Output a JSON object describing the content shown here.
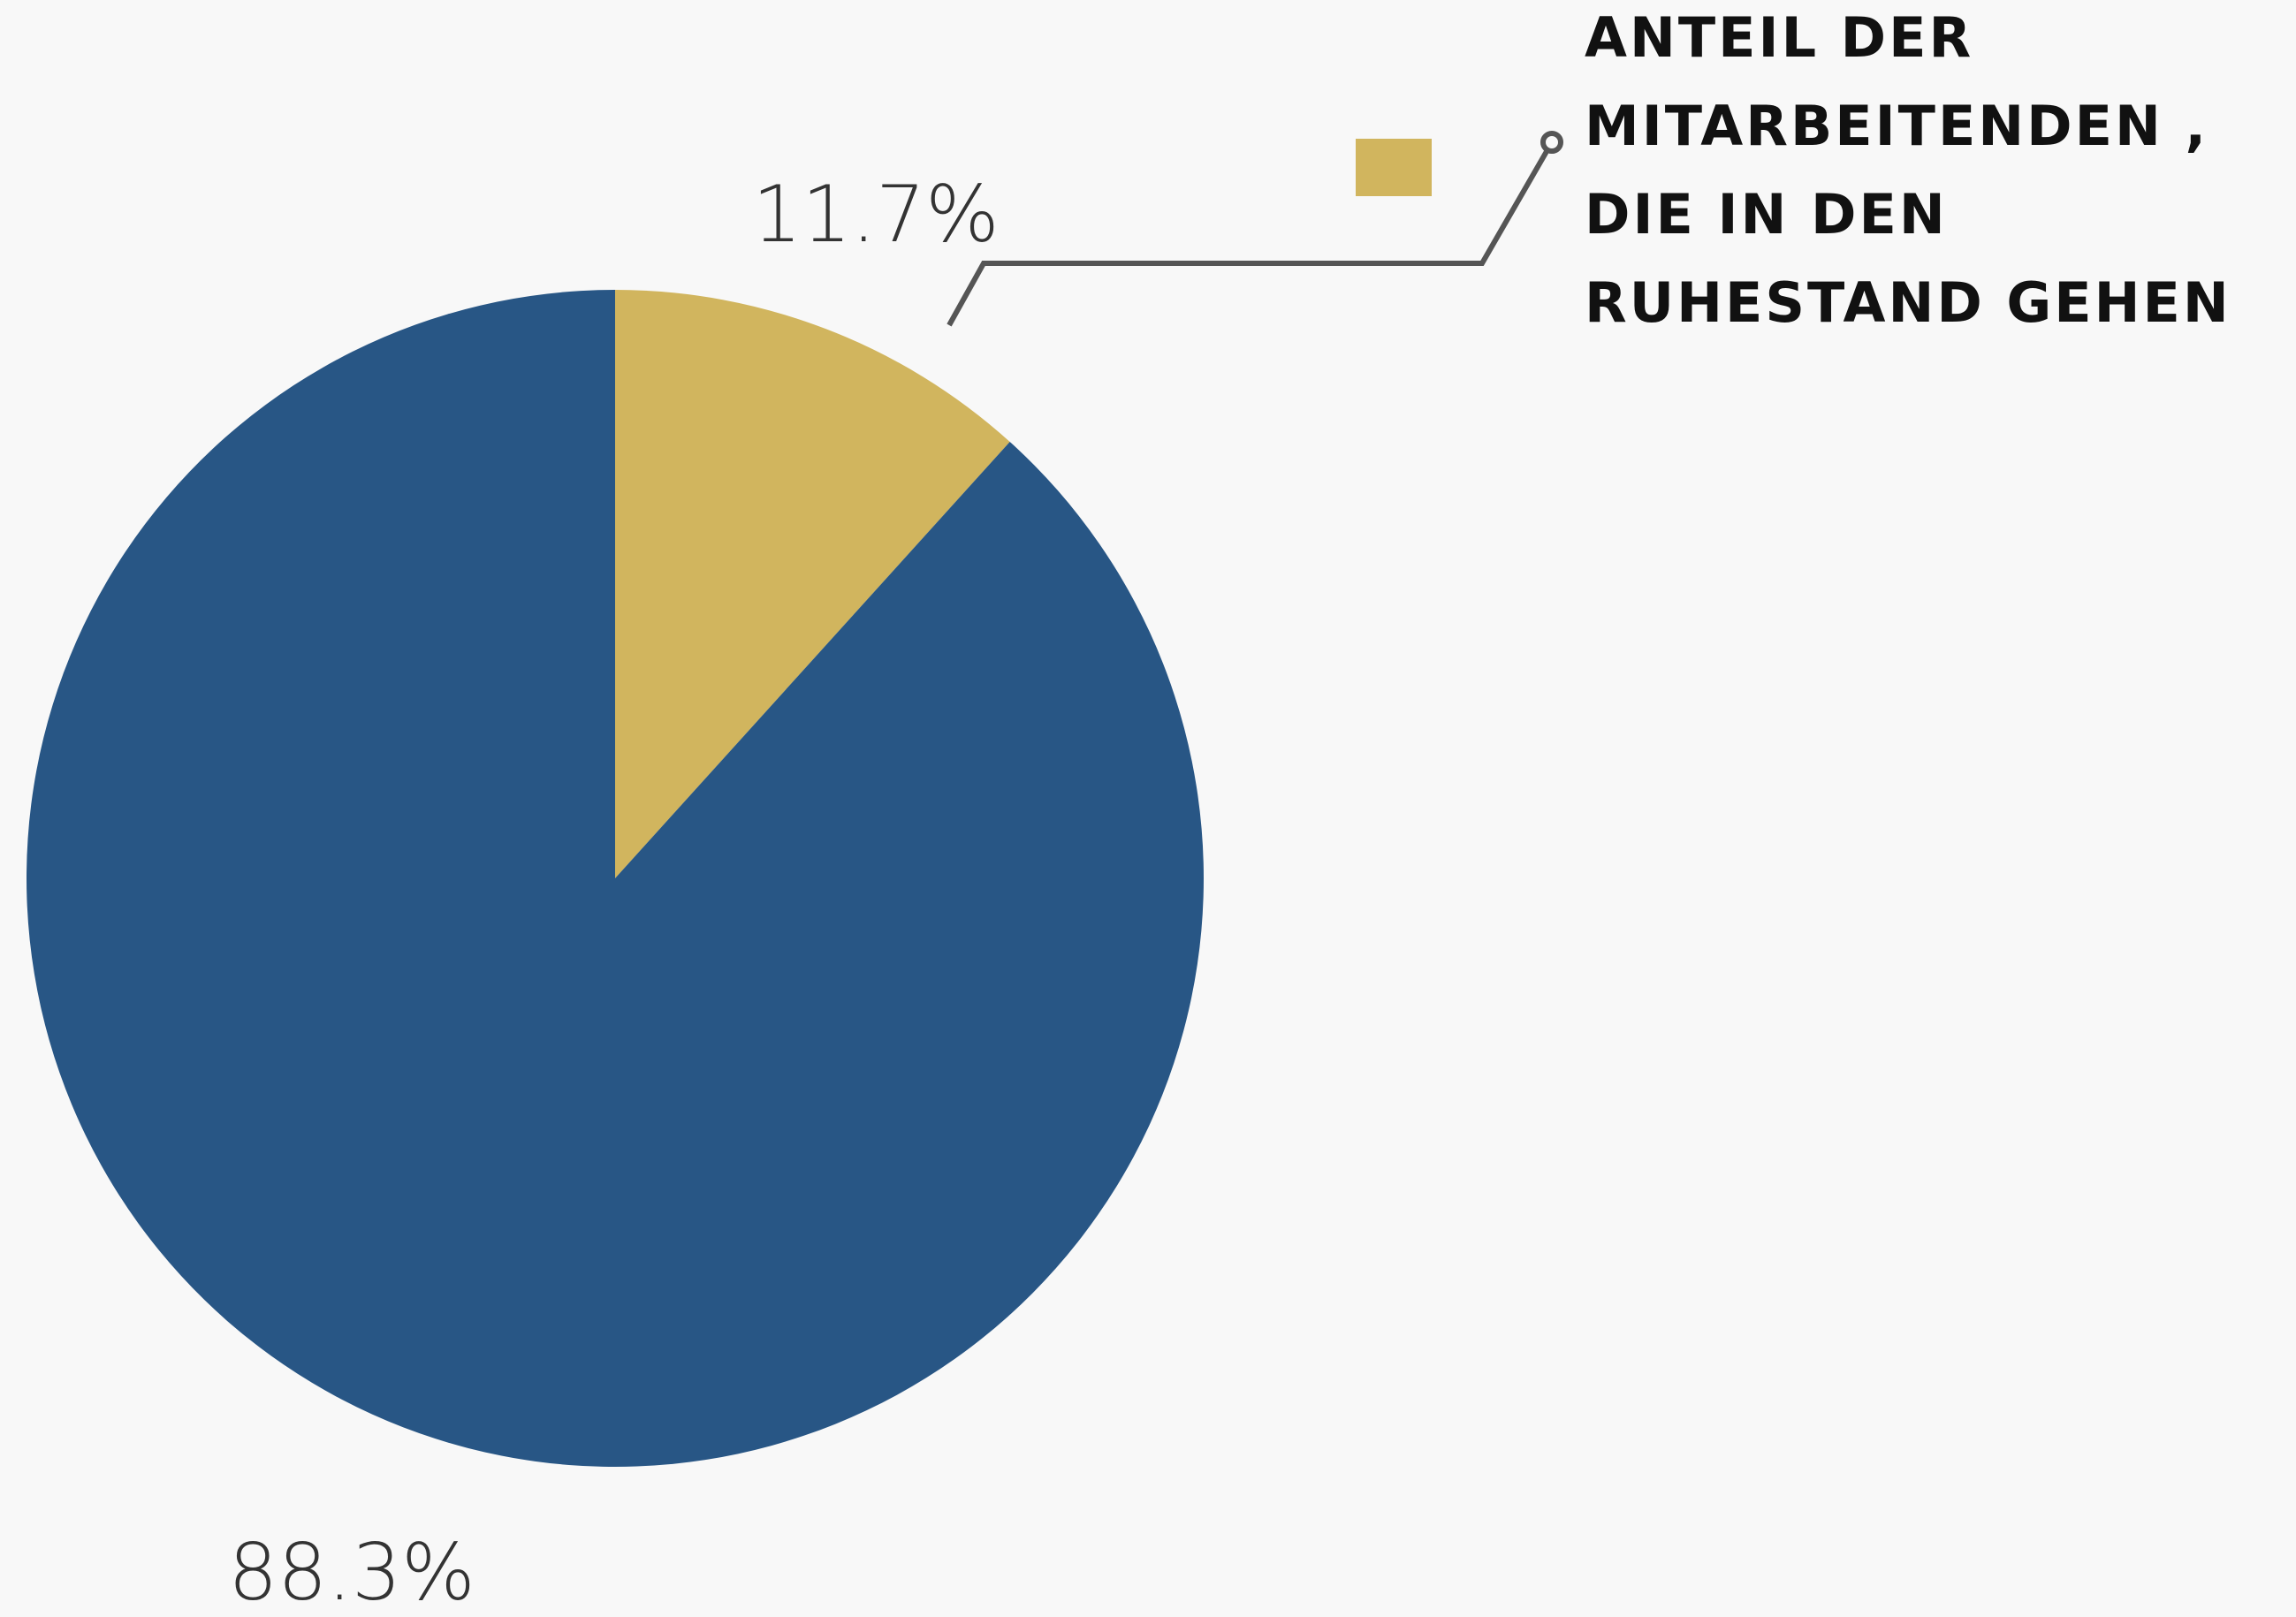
{
  "chart_data": {
    "type": "pie",
    "categories": [
      "ANTEIL DER MITARBEITENDEN , DIE IN DEN RUHESTAND GEHEN",
      null
    ],
    "values": [
      11.7,
      88.3
    ],
    "value_labels": [
      "11.7%",
      "88.3%"
    ],
    "colors": [
      "#d1b55e",
      "#285685"
    ],
    "legend": "top-right"
  }
}
